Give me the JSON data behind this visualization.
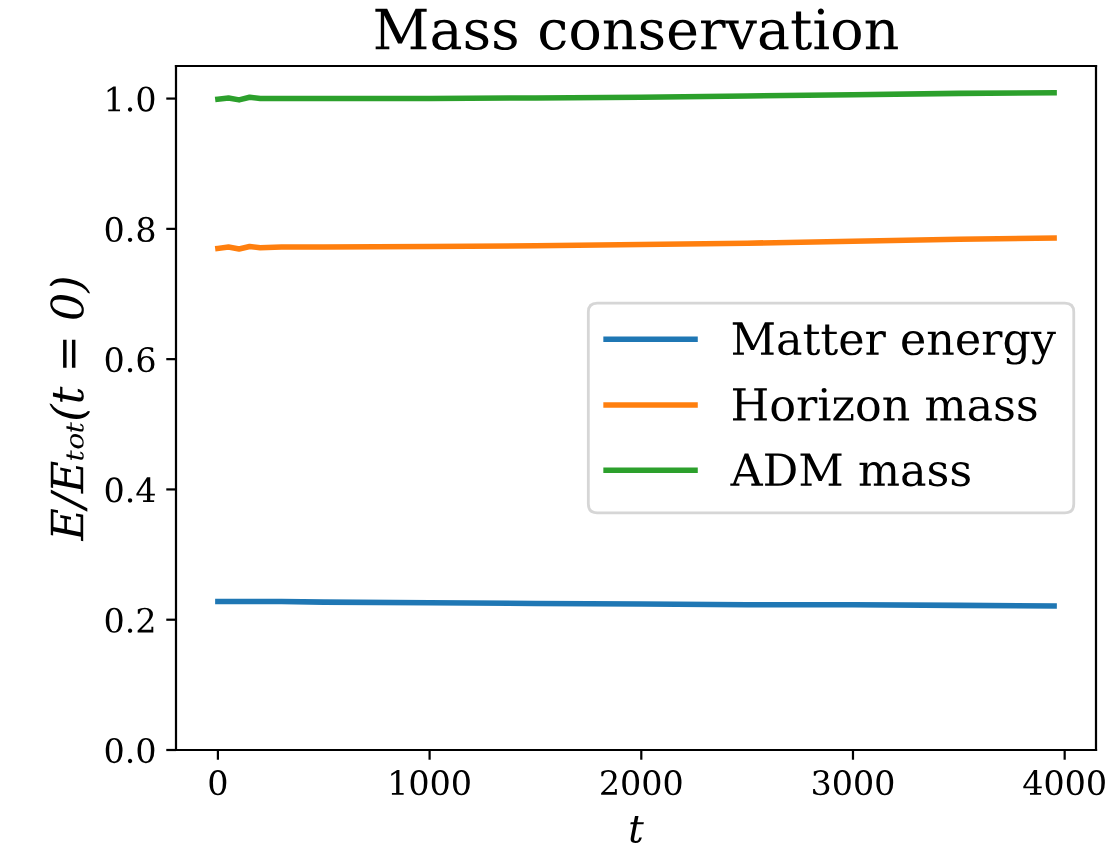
{
  "chart_data": {
    "type": "line",
    "title": "Mass conservation",
    "xlabel": "t",
    "ylabel": "E/Eₜₒₜ(t = 0)",
    "x": [
      0,
      50,
      100,
      150,
      200,
      300,
      500,
      1000,
      1500,
      2000,
      2500,
      3000,
      3500,
      3950
    ],
    "series": [
      {
        "name": "Matter energy",
        "color": "#1f77b4",
        "values": [
          0.228,
          0.228,
          0.228,
          0.228,
          0.228,
          0.228,
          0.227,
          0.226,
          0.225,
          0.224,
          0.223,
          0.223,
          0.222,
          0.221
        ]
      },
      {
        "name": "Horizon mass",
        "color": "#ff7f0e",
        "values": [
          0.77,
          0.772,
          0.769,
          0.773,
          0.771,
          0.772,
          0.772,
          0.773,
          0.774,
          0.776,
          0.778,
          0.781,
          0.784,
          0.786
        ]
      },
      {
        "name": "ADM mass",
        "color": "#2ca02c",
        "values": [
          0.999,
          1.001,
          0.998,
          1.002,
          1.0,
          1.0,
          1.0,
          1.0,
          1.001,
          1.002,
          1.004,
          1.006,
          1.008,
          1.009
        ]
      }
    ],
    "xlim": [
      -198,
      4148
    ],
    "ylim": [
      0,
      1.05
    ],
    "xticks": [
      0,
      1000,
      2000,
      3000,
      4000
    ],
    "yticks": [
      {
        "value": 0,
        "label": "0.0"
      },
      0.2,
      0.4,
      0.6,
      0.8,
      {
        "value": 1,
        "label": "1.0"
      }
    ],
    "legend": "center right",
    "grid": false
  }
}
